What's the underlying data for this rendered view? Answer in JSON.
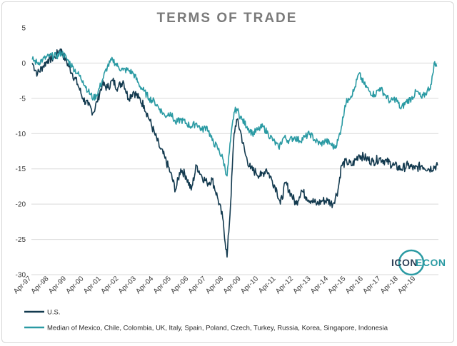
{
  "chart_data": {
    "type": "line",
    "title": "TERMS OF TRADE",
    "xlabel": "",
    "ylabel": "",
    "ylim": [
      -30,
      5
    ],
    "y_ticks": [
      5,
      0,
      -5,
      -10,
      -15,
      -20,
      -25,
      -30
    ],
    "x_ticks": [
      "Apr-97",
      "Apr-98",
      "Apr-99",
      "Apr-00",
      "Apr-01",
      "Apr-02",
      "Apr-03",
      "Apr-04",
      "Apr-05",
      "Apr-06",
      "Apr-07",
      "Apr-08",
      "Apr-09",
      "Apr-10",
      "Apr-11",
      "Apr-12",
      "Apr-13",
      "Apr-14",
      "Apr-15",
      "Apr-16",
      "Apr-17",
      "Apr-18",
      "Apr-19"
    ],
    "x_range": [
      1997.25,
      2020.55
    ],
    "grid": true,
    "legend_position": "bottom-left",
    "series": [
      {
        "name": "U.S.",
        "color": "#133a4f",
        "points": [
          [
            1997.3,
            0
          ],
          [
            1997.6,
            -1.5
          ],
          [
            1997.9,
            -0.5
          ],
          [
            1998.2,
            0.5
          ],
          [
            1998.6,
            0.8
          ],
          [
            1998.9,
            2.0
          ],
          [
            1999.2,
            0.5
          ],
          [
            1999.6,
            -1.5
          ],
          [
            1999.9,
            -3.0
          ],
          [
            2000.2,
            -5.0
          ],
          [
            2000.5,
            -6.0
          ],
          [
            2000.8,
            -7.0
          ],
          [
            2001.0,
            -5.5
          ],
          [
            2001.3,
            -3.0
          ],
          [
            2001.6,
            -3.5
          ],
          [
            2001.9,
            -2.5
          ],
          [
            2002.2,
            -3.5
          ],
          [
            2002.5,
            -2.5
          ],
          [
            2002.8,
            -5.0
          ],
          [
            2003.1,
            -4.0
          ],
          [
            2003.4,
            -5.0
          ],
          [
            2003.7,
            -6.0
          ],
          [
            2004.0,
            -8.0
          ],
          [
            2004.3,
            -10.0
          ],
          [
            2004.6,
            -12.0
          ],
          [
            2004.9,
            -13.5
          ],
          [
            2005.2,
            -15.5
          ],
          [
            2005.5,
            -18.0
          ],
          [
            2005.8,
            -15.0
          ],
          [
            2006.1,
            -16.0
          ],
          [
            2006.4,
            -18.0
          ],
          [
            2006.7,
            -14.5
          ],
          [
            2007.0,
            -16.0
          ],
          [
            2007.3,
            -17.0
          ],
          [
            2007.6,
            -16.5
          ],
          [
            2007.9,
            -19.0
          ],
          [
            2008.2,
            -22.0
          ],
          [
            2008.45,
            -27.5
          ],
          [
            2008.65,
            -20.0
          ],
          [
            2008.85,
            -10.0
          ],
          [
            2009.0,
            -8.0
          ],
          [
            2009.2,
            -9.5
          ],
          [
            2009.5,
            -13.0
          ],
          [
            2009.8,
            -15.0
          ],
          [
            2010.1,
            -15.5
          ],
          [
            2010.4,
            -16.0
          ],
          [
            2010.7,
            -15.0
          ],
          [
            2011.0,
            -16.5
          ],
          [
            2011.3,
            -18.0
          ],
          [
            2011.5,
            -20.0
          ],
          [
            2011.8,
            -17.0
          ],
          [
            2012.1,
            -18.5
          ],
          [
            2012.4,
            -20.0
          ],
          [
            2012.7,
            -18.0
          ],
          [
            2013.0,
            -19.0
          ],
          [
            2013.3,
            -19.5
          ],
          [
            2013.6,
            -20.0
          ],
          [
            2013.9,
            -19.5
          ],
          [
            2014.2,
            -19.5
          ],
          [
            2014.5,
            -20.0
          ],
          [
            2014.8,
            -18.0
          ],
          [
            2015.0,
            -14.5
          ],
          [
            2015.3,
            -14.0
          ],
          [
            2015.6,
            -14.5
          ],
          [
            2016.0,
            -13.0
          ],
          [
            2016.4,
            -13.5
          ],
          [
            2016.8,
            -14.0
          ],
          [
            2017.2,
            -13.5
          ],
          [
            2017.6,
            -14.0
          ],
          [
            2018.0,
            -14.5
          ],
          [
            2018.4,
            -15.0
          ],
          [
            2018.8,
            -14.5
          ],
          [
            2019.2,
            -15.0
          ],
          [
            2019.6,
            -14.5
          ],
          [
            2020.0,
            -15.0
          ],
          [
            2020.5,
            -14.5
          ]
        ]
      },
      {
        "name": "Median of Mexico, Chile, Colombia, UK, Italy, Spain, Poland, Czech, Turkey, Russia, Korea, Singapore, Indonesia",
        "color": "#2a9aa3",
        "points": [
          [
            1997.3,
            0.5
          ],
          [
            1997.6,
            0.0
          ],
          [
            1997.9,
            0.5
          ],
          [
            1998.3,
            1.0
          ],
          [
            1998.7,
            1.0
          ],
          [
            1999.0,
            1.5
          ],
          [
            1999.3,
            0.5
          ],
          [
            1999.6,
            -0.5
          ],
          [
            1999.9,
            -1.5
          ],
          [
            2000.2,
            -2.5
          ],
          [
            2000.5,
            -4.0
          ],
          [
            2000.8,
            -5.0
          ],
          [
            2001.0,
            -4.5
          ],
          [
            2001.3,
            -2.5
          ],
          [
            2001.6,
            -0.5
          ],
          [
            2001.9,
            0.5
          ],
          [
            2002.2,
            -0.5
          ],
          [
            2002.5,
            -1.0
          ],
          [
            2002.8,
            -1.0
          ],
          [
            2003.1,
            -1.5
          ],
          [
            2003.4,
            -3.0
          ],
          [
            2003.7,
            -4.0
          ],
          [
            2004.0,
            -5.0
          ],
          [
            2004.3,
            -5.5
          ],
          [
            2004.6,
            -6.5
          ],
          [
            2004.9,
            -7.5
          ],
          [
            2005.2,
            -7.0
          ],
          [
            2005.5,
            -8.5
          ],
          [
            2005.8,
            -8.0
          ],
          [
            2006.1,
            -8.5
          ],
          [
            2006.4,
            -9.0
          ],
          [
            2006.7,
            -8.5
          ],
          [
            2007.0,
            -9.5
          ],
          [
            2007.3,
            -9.0
          ],
          [
            2007.6,
            -11.0
          ],
          [
            2007.9,
            -12.0
          ],
          [
            2008.2,
            -13.5
          ],
          [
            2008.45,
            -16.0
          ],
          [
            2008.65,
            -11.0
          ],
          [
            2008.85,
            -7.0
          ],
          [
            2009.0,
            -6.5
          ],
          [
            2009.3,
            -8.0
          ],
          [
            2009.6,
            -9.0
          ],
          [
            2009.9,
            -10.0
          ],
          [
            2010.2,
            -9.5
          ],
          [
            2010.5,
            -9.0
          ],
          [
            2010.8,
            -10.0
          ],
          [
            2011.1,
            -11.0
          ],
          [
            2011.4,
            -12.0
          ],
          [
            2011.7,
            -10.5
          ],
          [
            2012.0,
            -11.0
          ],
          [
            2012.3,
            -10.5
          ],
          [
            2012.6,
            -11.0
          ],
          [
            2012.9,
            -10.5
          ],
          [
            2013.2,
            -10.0
          ],
          [
            2013.5,
            -11.0
          ],
          [
            2013.8,
            -11.5
          ],
          [
            2014.1,
            -11.0
          ],
          [
            2014.4,
            -11.5
          ],
          [
            2014.6,
            -12.0
          ],
          [
            2014.8,
            -11.0
          ],
          [
            2015.0,
            -9.0
          ],
          [
            2015.2,
            -6.0
          ],
          [
            2015.4,
            -5.0
          ],
          [
            2015.7,
            -4.0
          ],
          [
            2016.0,
            -1.5
          ],
          [
            2016.3,
            -3.0
          ],
          [
            2016.6,
            -4.0
          ],
          [
            2016.9,
            -4.5
          ],
          [
            2017.2,
            -3.5
          ],
          [
            2017.5,
            -4.5
          ],
          [
            2017.8,
            -5.5
          ],
          [
            2018.1,
            -5.0
          ],
          [
            2018.4,
            -6.5
          ],
          [
            2018.7,
            -5.5
          ],
          [
            2019.0,
            -5.0
          ],
          [
            2019.3,
            -4.0
          ],
          [
            2019.6,
            -5.0
          ],
          [
            2019.9,
            -4.0
          ],
          [
            2020.15,
            -3.0
          ],
          [
            2020.3,
            0.0
          ],
          [
            2020.45,
            -0.5
          ]
        ]
      }
    ]
  },
  "logo": {
    "text_left": "ICON",
    "text_right": "ECON"
  }
}
